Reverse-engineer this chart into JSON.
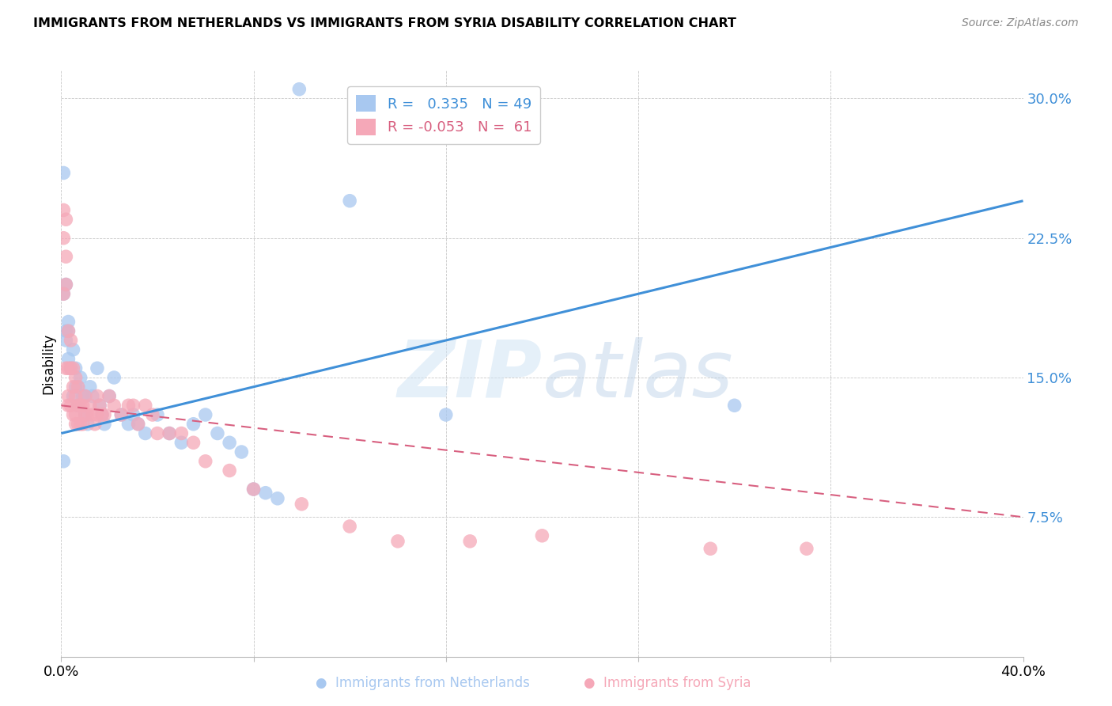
{
  "title": "IMMIGRANTS FROM NETHERLANDS VS IMMIGRANTS FROM SYRIA DISABILITY CORRELATION CHART",
  "source": "Source: ZipAtlas.com",
  "ylabel": "Disability",
  "xlim": [
    0.0,
    0.4
  ],
  "ylim": [
    0.0,
    0.315
  ],
  "ytick_vals": [
    0.075,
    0.15,
    0.225,
    0.3
  ],
  "ytick_labels": [
    "7.5%",
    "15.0%",
    "22.5%",
    "30.0%"
  ],
  "xtick_positions": [
    0.0,
    0.08,
    0.16,
    0.24,
    0.32,
    0.4
  ],
  "xtick_labels": [
    "0.0%",
    "",
    "",
    "",
    "",
    "40.0%"
  ],
  "netherlands_R": 0.335,
  "netherlands_N": 49,
  "syria_R": -0.053,
  "syria_N": 61,
  "netherlands_color": "#a8c8f0",
  "syria_color": "#f5a8b8",
  "netherlands_line_color": "#4090d8",
  "syria_line_color": "#d86080",
  "background_color": "#ffffff",
  "watermark": "ZIPatlas",
  "netherlands_x": [
    0.099,
    0.12,
    0.001,
    0.001,
    0.002,
    0.002,
    0.002,
    0.003,
    0.003,
    0.003,
    0.004,
    0.005,
    0.005,
    0.006,
    0.006,
    0.007,
    0.007,
    0.008,
    0.009,
    0.01,
    0.01,
    0.011,
    0.012,
    0.013,
    0.015,
    0.016,
    0.017,
    0.018,
    0.02,
    0.022,
    0.025,
    0.028,
    0.03,
    0.032,
    0.035,
    0.04,
    0.045,
    0.05,
    0.055,
    0.06,
    0.065,
    0.07,
    0.075,
    0.08,
    0.085,
    0.09,
    0.16,
    0.28,
    0.001
  ],
  "netherlands_y": [
    0.305,
    0.245,
    0.26,
    0.195,
    0.2,
    0.175,
    0.17,
    0.175,
    0.16,
    0.18,
    0.155,
    0.165,
    0.14,
    0.145,
    0.155,
    0.145,
    0.135,
    0.15,
    0.14,
    0.14,
    0.13,
    0.125,
    0.145,
    0.14,
    0.155,
    0.135,
    0.13,
    0.125,
    0.14,
    0.15,
    0.13,
    0.125,
    0.13,
    0.125,
    0.12,
    0.13,
    0.12,
    0.115,
    0.125,
    0.13,
    0.12,
    0.115,
    0.11,
    0.09,
    0.088,
    0.085,
    0.13,
    0.135,
    0.105
  ],
  "syria_x": [
    0.001,
    0.001,
    0.001,
    0.002,
    0.002,
    0.002,
    0.002,
    0.003,
    0.003,
    0.003,
    0.003,
    0.004,
    0.004,
    0.004,
    0.005,
    0.005,
    0.005,
    0.006,
    0.006,
    0.006,
    0.006,
    0.007,
    0.007,
    0.007,
    0.008,
    0.008,
    0.009,
    0.009,
    0.01,
    0.01,
    0.011,
    0.012,
    0.013,
    0.014,
    0.015,
    0.015,
    0.016,
    0.017,
    0.018,
    0.02,
    0.022,
    0.025,
    0.028,
    0.03,
    0.032,
    0.035,
    0.038,
    0.04,
    0.045,
    0.05,
    0.055,
    0.06,
    0.07,
    0.08,
    0.1,
    0.12,
    0.14,
    0.17,
    0.2,
    0.27,
    0.31
  ],
  "syria_y": [
    0.24,
    0.225,
    0.195,
    0.235,
    0.215,
    0.2,
    0.155,
    0.175,
    0.155,
    0.14,
    0.135,
    0.17,
    0.155,
    0.135,
    0.155,
    0.145,
    0.13,
    0.15,
    0.14,
    0.13,
    0.125,
    0.145,
    0.135,
    0.125,
    0.135,
    0.125,
    0.135,
    0.125,
    0.14,
    0.13,
    0.13,
    0.135,
    0.13,
    0.125,
    0.14,
    0.13,
    0.135,
    0.13,
    0.13,
    0.14,
    0.135,
    0.13,
    0.135,
    0.135,
    0.125,
    0.135,
    0.13,
    0.12,
    0.12,
    0.12,
    0.115,
    0.105,
    0.1,
    0.09,
    0.082,
    0.07,
    0.062,
    0.062,
    0.065,
    0.058,
    0.058
  ],
  "nl_line_x": [
    0.0,
    0.4
  ],
  "nl_line_y": [
    0.12,
    0.245
  ],
  "sy_line_x": [
    0.0,
    0.4
  ],
  "sy_line_y": [
    0.135,
    0.075
  ]
}
